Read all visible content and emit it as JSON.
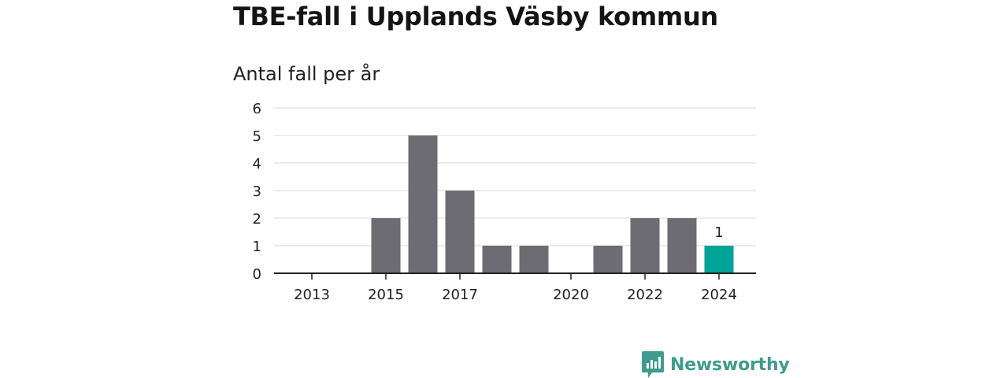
{
  "title": "TBE-fall i Upplands Väsby kommun",
  "subtitle": "Antal fall per år",
  "chart_data": {
    "type": "bar",
    "categories": [
      "2013",
      "2014",
      "2015",
      "2016",
      "2017",
      "2018",
      "2019",
      "2020",
      "2021",
      "2022",
      "2023",
      "2024"
    ],
    "values": [
      0,
      0,
      2,
      5,
      3,
      1,
      1,
      0,
      1,
      2,
      2,
      1
    ],
    "x_tick_labels": [
      "2013",
      "2015",
      "2017",
      "2020",
      "2022",
      "2024"
    ],
    "y_ticks": [
      "0",
      "1",
      "2",
      "3",
      "4",
      "5",
      "6"
    ],
    "ylim": [
      0,
      6
    ],
    "grid": true,
    "highlight_category": "2024",
    "highlight_label": "1",
    "colors": {
      "bar": "#6d6c72",
      "highlight": "#00a396",
      "grid": "#d9d9d9",
      "axis": "#222222"
    }
  },
  "brand": {
    "name": "Newsworthy",
    "logo_icon": "bar-chart-speech-bubble-icon",
    "color": "#3f9b8e"
  }
}
